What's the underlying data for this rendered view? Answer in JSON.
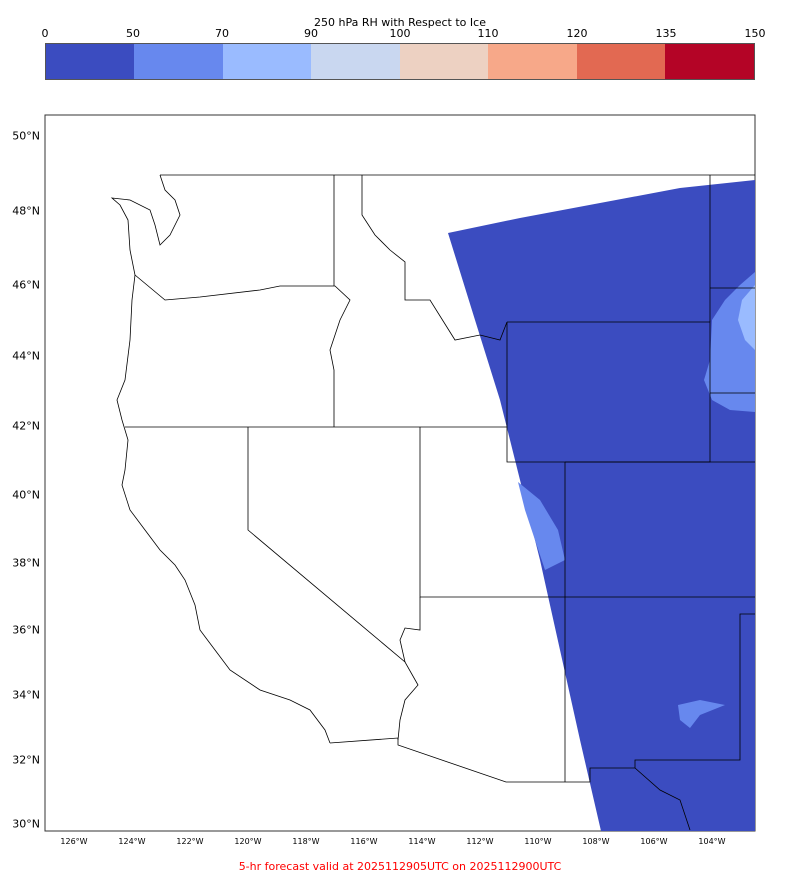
{
  "colorbar": {
    "title": "250 hPa RH with Respect to Ice",
    "ticks": [
      "0",
      "50",
      "70",
      "90",
      "100",
      "110",
      "120",
      "135",
      "150"
    ],
    "colors": [
      "#3b4cc0",
      "#6788ee",
      "#9abbff",
      "#c9d7f0",
      "#edd1c2",
      "#f7a889",
      "#e26952",
      "#b40426"
    ]
  },
  "map": {
    "lat_labels": [
      "50°N",
      "48°N",
      "46°N",
      "44°N",
      "42°N",
      "40°N",
      "38°N",
      "36°N",
      "34°N",
      "32°N",
      "30°N"
    ],
    "lon_labels": [
      "126°W",
      "124°W",
      "122°W",
      "120°W",
      "118°W",
      "116°W",
      "114°W",
      "112°W",
      "110°W",
      "108°W",
      "106°W",
      "104°W"
    ]
  },
  "footer": "5-hr forecast valid at 2025112905UTC on 2025112900UTC"
}
